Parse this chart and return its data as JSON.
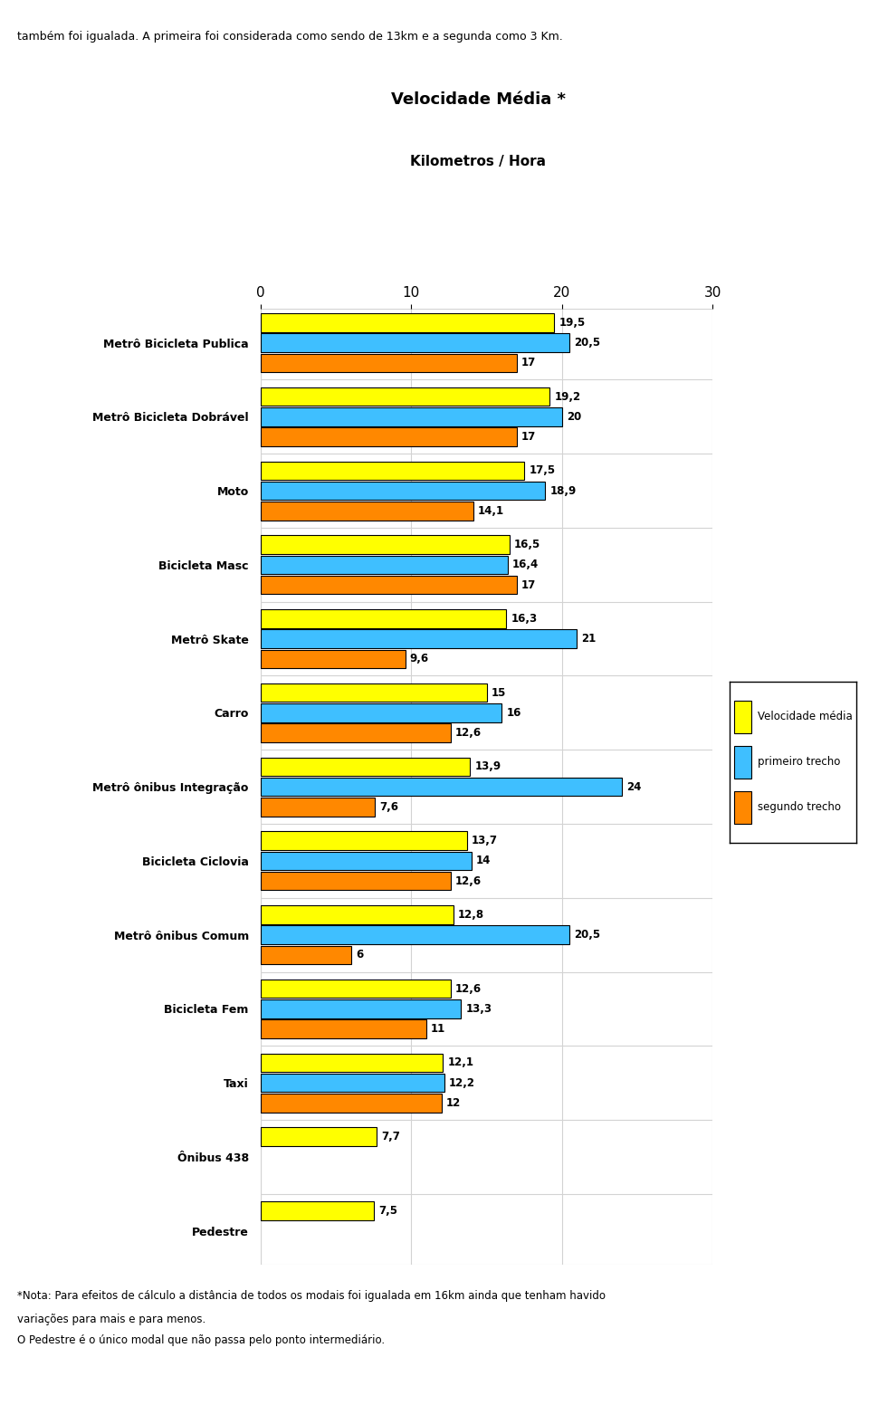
{
  "title": "Velocidade Média *",
  "xlabel": "Kilometros / Hora",
  "categories": [
    "Metrô Bicicleta Publica",
    "Metrô Bicicleta Dobrável",
    "Moto",
    "Bicicleta Masc",
    "Metrô Skate",
    "Carro",
    "Metrô ônibus Integração",
    "Bicicleta Ciclovia",
    "Metrô ônibus Comum",
    "Bicicleta Fem",
    "Taxi",
    "Ônibus 438",
    "Pedestre"
  ],
  "velocidade_media": [
    19.5,
    19.2,
    17.5,
    16.5,
    16.3,
    15.0,
    13.9,
    13.7,
    12.8,
    12.6,
    12.1,
    7.7,
    7.5
  ],
  "primeiro_trecho": [
    20.5,
    20.0,
    18.9,
    16.4,
    21.0,
    16.0,
    24.0,
    14.0,
    20.5,
    13.3,
    12.2,
    null,
    null
  ],
  "segundo_trecho": [
    17.0,
    17.0,
    14.1,
    17.0,
    9.6,
    12.6,
    7.6,
    12.6,
    6.0,
    11.0,
    12.0,
    null,
    null
  ],
  "labels_vm": [
    "19,5",
    "19,2",
    "17,5",
    "16,5",
    "16,3",
    "15",
    "13,9",
    "13,7",
    "12,8",
    "12,6",
    "12,1",
    "7,7",
    "7,5"
  ],
  "labels_pt": [
    "20,5",
    "20",
    "18,9",
    "16,4",
    "21",
    "16",
    "24",
    "14",
    "20,5",
    "13,3",
    "12,2",
    null,
    null
  ],
  "labels_st": [
    "17",
    "17",
    "14,1",
    "17",
    "9,6",
    "12,6",
    "7,6",
    "12,6",
    "6",
    "11",
    "12",
    null,
    null
  ],
  "color_yellow": "#FFFF00",
  "color_cyan": "#3FBFFF",
  "color_orange": "#FF8800",
  "bar_height": 0.22,
  "xlim": [
    0,
    30
  ],
  "xticks": [
    0,
    10,
    20,
    30
  ],
  "top_text": "também foi igualada. A primeira foi considerada como sendo de 13km e a segunda como 3 Km.",
  "legend_labels": [
    "Velocidade média",
    "primeiro trecho",
    "segundo trecho"
  ],
  "footer_line1": "*Nota: Para efeitos de cálculo a distância de todos os modais foi igualada em 16km ainda que tenham havido",
  "footer_line2": "variações para mais e para menos.",
  "footer_line3": "O Pedestre é o único modal que não passa pelo ponto intermediário."
}
